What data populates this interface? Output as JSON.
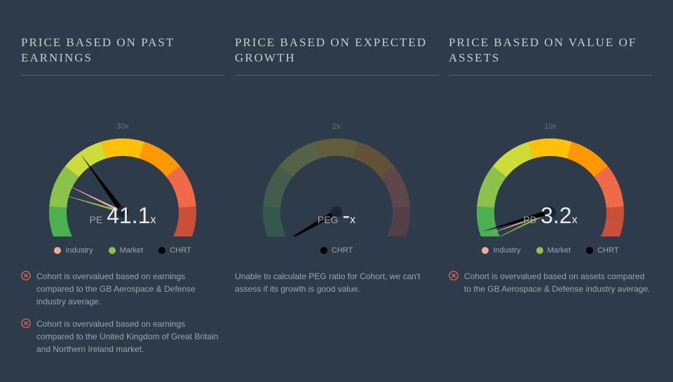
{
  "background_color": "#2d3b4a",
  "panels": [
    {
      "title": "PRICE BASED ON PAST EARNINGS",
      "gauge": {
        "type": "gauge",
        "metric": "PE",
        "value": "41.1",
        "unit": "x",
        "min": 0,
        "max": 60,
        "ticks": [
          "0x",
          "30x",
          "60x"
        ],
        "dimmed": false,
        "gradient_stops": [
          "#4caf50",
          "#8bc34a",
          "#cddc39",
          "#ffc107",
          "#ff9800",
          "#f06a4a",
          "#c94f3a"
        ],
        "needles": [
          {
            "color": "#f4a896",
            "angle_deg": -64,
            "width": 3
          },
          {
            "color": "#8bc34a",
            "angle_deg": -74,
            "width": 3
          },
          {
            "color": "#000000",
            "angle_deg": -36,
            "width": 7
          }
        ]
      },
      "legend": [
        {
          "label": "Industry",
          "color": "#f4a896"
        },
        {
          "label": "Market",
          "color": "#8bc34a"
        },
        {
          "label": "CHRT",
          "color": "#000000"
        }
      ],
      "notes": [
        {
          "icon": "x-circle",
          "icon_color": "#e86a5c",
          "text": "Cohort is overvalued based on earnings compared to the GB Aerospace & Defense industry average."
        },
        {
          "icon": "x-circle",
          "icon_color": "#e86a5c",
          "text": "Cohort is overvalued based on earnings compared to the United Kingdom of Great Britain and Northern Ireland market."
        }
      ]
    },
    {
      "title": "PRICE BASED ON EXPECTED GROWTH",
      "gauge": {
        "type": "gauge",
        "metric": "PEG",
        "value": "-",
        "unit": "x",
        "min": 0,
        "max": 4,
        "ticks": [
          "0x",
          "2x",
          "4x"
        ],
        "dimmed": true,
        "gradient_stops": [
          "#4caf50",
          "#8bc34a",
          "#cddc39",
          "#ffc107",
          "#ff9800",
          "#f06a4a",
          "#c94f3a"
        ],
        "needles": [
          {
            "color": "#000000",
            "angle_deg": -120,
            "width": 7
          }
        ]
      },
      "legend": [
        {
          "label": "CHRT",
          "color": "#000000"
        }
      ],
      "notes": [
        {
          "icon": null,
          "text": "Unable to calculate PEG ratio for Cohort, we can't assess if its growth is good value."
        }
      ]
    },
    {
      "title": "PRICE BASED ON VALUE OF ASSETS",
      "gauge": {
        "type": "gauge",
        "metric": "PB",
        "value": "3.2",
        "unit": "x",
        "min": 0,
        "max": 20,
        "ticks": [
          "0x",
          "10x",
          "20x"
        ],
        "dimmed": false,
        "gradient_stops": [
          "#4caf50",
          "#8bc34a",
          "#cddc39",
          "#ffc107",
          "#ff9800",
          "#f06a4a",
          "#c94f3a"
        ],
        "needles": [
          {
            "color": "#f4a896",
            "angle_deg": -110,
            "width": 3
          },
          {
            "color": "#8bc34a",
            "angle_deg": -116,
            "width": 3
          },
          {
            "color": "#000000",
            "angle_deg": -106,
            "width": 7
          }
        ]
      },
      "legend": [
        {
          "label": "Industry",
          "color": "#f4a896"
        },
        {
          "label": "Market",
          "color": "#8bc34a"
        },
        {
          "label": "CHRT",
          "color": "#000000"
        }
      ],
      "notes": [
        {
          "icon": "x-circle",
          "icon_color": "#e86a5c",
          "text": "Cohort is overvalued based on assets compared to the GB Aerospace & Defense industry average."
        }
      ]
    }
  ]
}
